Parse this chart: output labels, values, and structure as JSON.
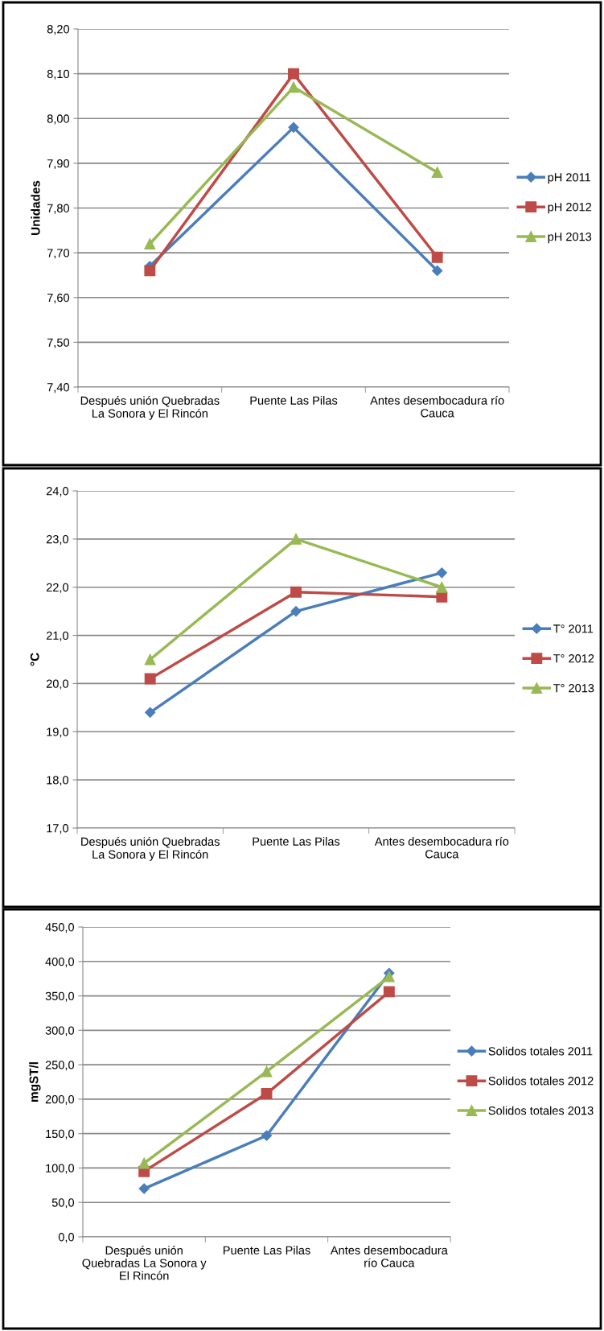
{
  "chart_data": [
    {
      "type": "line",
      "ylabel": "Unidades",
      "categories": [
        "Después unión Quebradas\nLa Sonora y El Rincón",
        "Puente Las Pilas",
        "Antes desembocadura río\nCauca"
      ],
      "series": [
        {
          "name": "pH 2011",
          "color": "#4a7ebb",
          "marker": "diamond",
          "values": [
            7.67,
            7.98,
            7.66
          ]
        },
        {
          "name": "pH 2012",
          "color": "#be4b48",
          "marker": "square",
          "values": [
            7.66,
            8.1,
            7.69
          ]
        },
        {
          "name": "pH 2013",
          "color": "#98b954",
          "marker": "triangle",
          "values": [
            7.72,
            8.07,
            7.88
          ]
        }
      ],
      "ylim": [
        7.4,
        8.2
      ],
      "yticks": [
        {
          "value": 7.4,
          "label": "7,40"
        },
        {
          "value": 7.5,
          "label": "7,50"
        },
        {
          "value": 7.6,
          "label": "7,60"
        },
        {
          "value": 7.7,
          "label": "7,70"
        },
        {
          "value": 7.8,
          "label": "7,80"
        },
        {
          "value": 7.9,
          "label": "7,90"
        },
        {
          "value": 8.0,
          "label": "8,00"
        },
        {
          "value": 8.1,
          "label": "8,10"
        },
        {
          "value": 8.2,
          "label": "8,20"
        }
      ],
      "grid": "y",
      "legend": "right",
      "line_style": "solid"
    },
    {
      "type": "line",
      "ylabel": "°C",
      "categories": [
        "Después unión Quebradas\nLa Sonora y El Rincón",
        "Puente Las Pilas",
        "Antes desembocadura río\nCauca"
      ],
      "series": [
        {
          "name": "T° 2011",
          "color": "#4a7ebb",
          "marker": "diamond",
          "values": [
            19.4,
            21.5,
            22.3
          ]
        },
        {
          "name": "T° 2012",
          "color": "#be4b48",
          "marker": "square",
          "values": [
            20.1,
            21.9,
            21.8
          ]
        },
        {
          "name": "T° 2013",
          "color": "#98b954",
          "marker": "triangle",
          "values": [
            20.5,
            23.0,
            22.0
          ]
        }
      ],
      "ylim": [
        17,
        24
      ],
      "yticks": [
        {
          "value": 17,
          "label": "17,0"
        },
        {
          "value": 18,
          "label": "18,0"
        },
        {
          "value": 19,
          "label": "19,0"
        },
        {
          "value": 20,
          "label": "20,0"
        },
        {
          "value": 21,
          "label": "21,0"
        },
        {
          "value": 22,
          "label": "22,0"
        },
        {
          "value": 23,
          "label": "23,0"
        },
        {
          "value": 24,
          "label": "24,0"
        }
      ],
      "grid": "y",
      "legend": "right",
      "line_style": "solid"
    },
    {
      "type": "line",
      "ylabel": "mgST/l",
      "categories": [
        "Después unión\nQuebradas La Sonora y\nEl Rincón",
        "Puente Las Pilas",
        "Antes desembocadura\nrío Cauca"
      ],
      "series": [
        {
          "name": "Solidos totales 2011",
          "color": "#4a7ebb",
          "marker": "diamond",
          "values": [
            70,
            147,
            383
          ]
        },
        {
          "name": "Solidos totales 2012",
          "color": "#be4b48",
          "marker": "square",
          "values": [
            95,
            208,
            356
          ]
        },
        {
          "name": "Solidos totales 2013",
          "color": "#98b954",
          "marker": "triangle",
          "values": [
            107,
            240,
            378
          ]
        }
      ],
      "ylim": [
        0,
        450
      ],
      "yticks": [
        {
          "value": 0,
          "label": "0,0"
        },
        {
          "value": 50,
          "label": "50,0"
        },
        {
          "value": 100,
          "label": "100,0"
        },
        {
          "value": 150,
          "label": "150,0"
        },
        {
          "value": 200,
          "label": "200,0"
        },
        {
          "value": 250,
          "label": "250,0"
        },
        {
          "value": 300,
          "label": "300,0"
        },
        {
          "value": 350,
          "label": "350,0"
        },
        {
          "value": 400,
          "label": "400,0"
        },
        {
          "value": 450,
          "label": "450,0"
        }
      ],
      "grid": "y",
      "legend": "right",
      "line_style": "solid"
    }
  ]
}
